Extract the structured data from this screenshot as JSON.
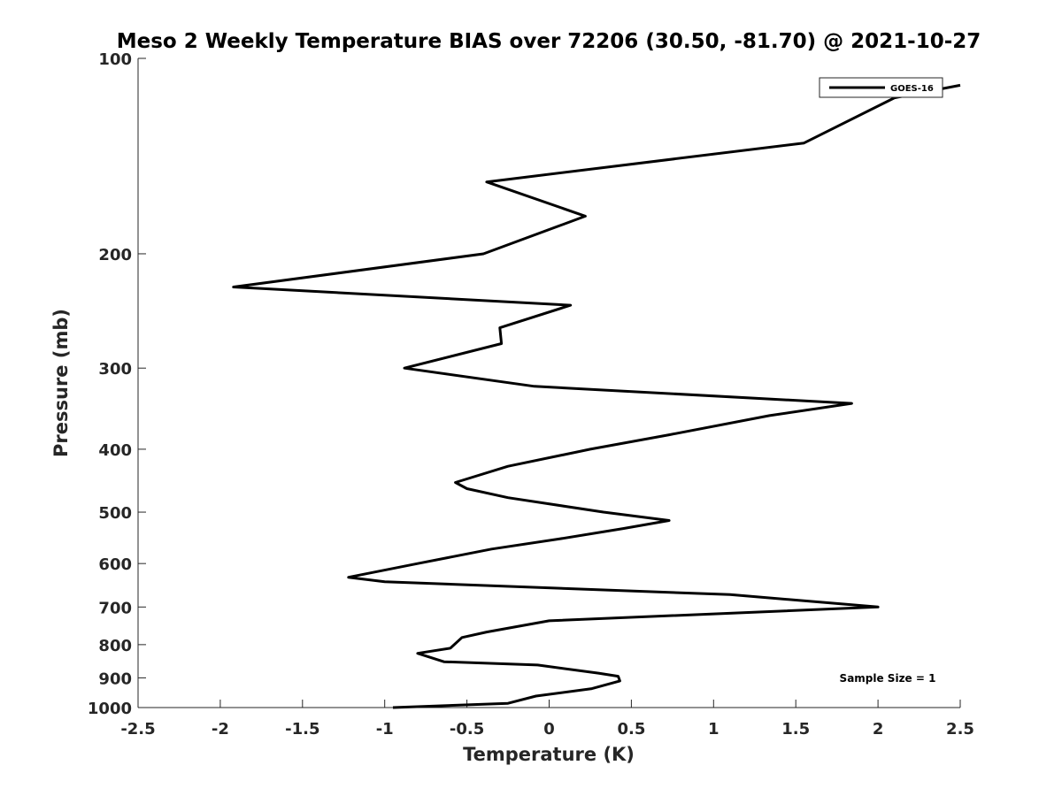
{
  "chart_data": {
    "type": "line",
    "title": "Meso 2 Weekly Temperature BIAS over 72206 (30.50, -81.70) @ 2021-10-27",
    "xlabel": "Temperature (K)",
    "ylabel": "Pressure (mb)",
    "xlim": [
      -2.5,
      2.5
    ],
    "ylim": [
      1000,
      100
    ],
    "y_scale": "log",
    "y_reversed": true,
    "grid": false,
    "legend_position": "top-right",
    "x_ticks": [
      "-2.5",
      "-2",
      "-1.5",
      "-1",
      "-0.5",
      "0",
      "0.5",
      "1",
      "1.5",
      "2",
      "2.5"
    ],
    "y_ticks": [
      "100",
      "200",
      "300",
      "400",
      "500",
      "600",
      "700",
      "800",
      "900",
      "1000"
    ],
    "annotation": "Sample Size = 1",
    "series": [
      {
        "name": "GOES-16",
        "color": "#000000",
        "points": [
          {
            "p": 1000,
            "t": -0.95
          },
          {
            "p": 985,
            "t": -0.25
          },
          {
            "p": 960,
            "t": -0.08
          },
          {
            "p": 935,
            "t": 0.26
          },
          {
            "p": 910,
            "t": 0.43
          },
          {
            "p": 895,
            "t": 0.42
          },
          {
            "p": 885,
            "t": 0.3
          },
          {
            "p": 860,
            "t": -0.07
          },
          {
            "p": 850,
            "t": -0.64
          },
          {
            "p": 825,
            "t": -0.8
          },
          {
            "p": 810,
            "t": -0.6
          },
          {
            "p": 780,
            "t": -0.53
          },
          {
            "p": 765,
            "t": -0.38
          },
          {
            "p": 735,
            "t": 0.0
          },
          {
            "p": 700,
            "t": 2.0
          },
          {
            "p": 670,
            "t": 1.1
          },
          {
            "p": 640,
            "t": -1.0
          },
          {
            "p": 630,
            "t": -1.22
          },
          {
            "p": 600,
            "t": -0.8
          },
          {
            "p": 570,
            "t": -0.35
          },
          {
            "p": 550,
            "t": 0.06
          },
          {
            "p": 530,
            "t": 0.45
          },
          {
            "p": 515,
            "t": 0.73
          },
          {
            "p": 500,
            "t": 0.33
          },
          {
            "p": 475,
            "t": -0.25
          },
          {
            "p": 460,
            "t": -0.5
          },
          {
            "p": 450,
            "t": -0.57
          },
          {
            "p": 425,
            "t": -0.25
          },
          {
            "p": 400,
            "t": 0.25
          },
          {
            "p": 380,
            "t": 0.73
          },
          {
            "p": 355,
            "t": 1.34
          },
          {
            "p": 340,
            "t": 1.84
          },
          {
            "p": 320,
            "t": -0.09
          },
          {
            "p": 300,
            "t": -0.88
          },
          {
            "p": 275,
            "t": -0.29
          },
          {
            "p": 260,
            "t": -0.3
          },
          {
            "p": 240,
            "t": 0.13
          },
          {
            "p": 225,
            "t": -1.92
          },
          {
            "p": 200,
            "t": -0.4
          },
          {
            "p": 175,
            "t": 0.22
          },
          {
            "p": 155,
            "t": -0.38
          },
          {
            "p": 135,
            "t": 1.55
          },
          {
            "p": 115,
            "t": 2.1
          },
          {
            "p": 110,
            "t": 2.5
          }
        ]
      }
    ]
  }
}
